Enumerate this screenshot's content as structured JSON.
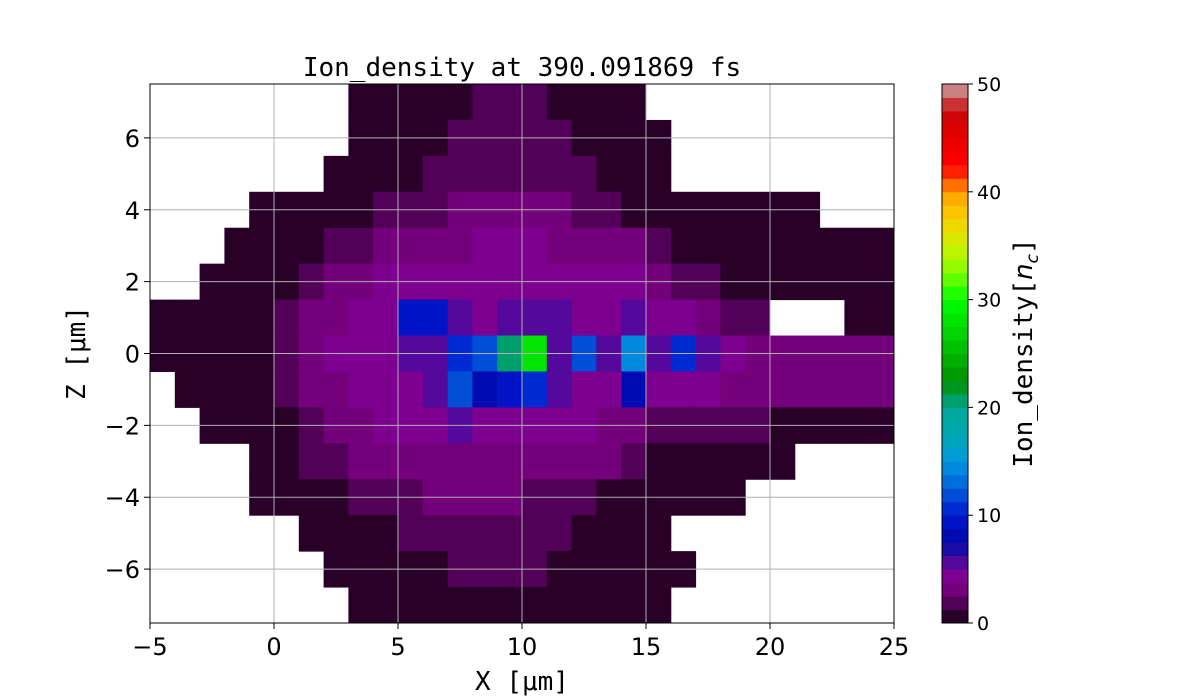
{
  "chart_data": {
    "type": "heatmap",
    "title": "Ion_density at 390.091869 fs",
    "xlabel": "X [μm]",
    "ylabel": "Z [μm]",
    "xlim": [
      -5,
      25
    ],
    "ylim": [
      -7.5,
      7.5
    ],
    "xticks": [
      -5,
      0,
      5,
      10,
      15,
      20,
      25
    ],
    "xtick_labels": [
      "−5",
      "0",
      "5",
      "10",
      "15",
      "20",
      "25"
    ],
    "yticks": [
      -6,
      -4,
      -2,
      0,
      2,
      4,
      6
    ],
    "ytick_labels": [
      "−6",
      "−4",
      "−2",
      "0",
      "2",
      "4",
      "6"
    ],
    "grid": true,
    "colorbar": {
      "label_prefix": "Ion_density[",
      "label_var": "n",
      "label_sub": "c",
      "label_suffix": "]",
      "range": [
        0,
        50
      ],
      "ticks": [
        0,
        10,
        20,
        30,
        40,
        50
      ],
      "tick_labels": [
        "0",
        "10",
        "20",
        "30",
        "40",
        "50"
      ],
      "levels": 40,
      "position": "right"
    },
    "colormap": [
      [
        0,
        "#14000f"
      ],
      [
        1.25,
        "#3c0040"
      ],
      [
        2.5,
        "#6a0070"
      ],
      [
        3.75,
        "#800088"
      ],
      [
        5,
        "#7a0098"
      ],
      [
        6.25,
        "#3010a0"
      ],
      [
        7.5,
        "#0008a8"
      ],
      [
        10,
        "#0018d0"
      ],
      [
        12.5,
        "#0060d8"
      ],
      [
        15,
        "#0098e0"
      ],
      [
        17.5,
        "#00a8b0"
      ],
      [
        20,
        "#00a898"
      ],
      [
        21.25,
        "#009840"
      ],
      [
        22.5,
        "#009000"
      ],
      [
        25,
        "#00b800"
      ],
      [
        30,
        "#00ff00"
      ],
      [
        32.5,
        "#80ff00"
      ],
      [
        35,
        "#d0f000"
      ],
      [
        37.5,
        "#f8d000"
      ],
      [
        40,
        "#ffa000"
      ],
      [
        41.25,
        "#ff4000"
      ],
      [
        42.5,
        "#ff0000"
      ],
      [
        46.25,
        "#d80000"
      ],
      [
        47.5,
        "#c80c0c"
      ],
      [
        48.75,
        "#cc5858"
      ],
      [
        50,
        "#ccaaaa"
      ]
    ],
    "x": [
      -4.5,
      -3.5,
      -2.5,
      -1.5,
      -0.5,
      0.5,
      1.5,
      2.5,
      3.5,
      4.5,
      5.5,
      6.5,
      7.5,
      8.5,
      9.5,
      10.5,
      11.5,
      12.5,
      13.5,
      14.5,
      15.5,
      16.5,
      17.5,
      18.5,
      19.5,
      20.5,
      21.5,
      22.5,
      23.5,
      24.5
    ],
    "z": [
      7,
      6,
      5,
      4,
      3,
      2,
      1,
      0,
      -1,
      -2,
      -3,
      -4,
      -5,
      -6,
      -7
    ],
    "values": [
      [
        0,
        0,
        0,
        0,
        0,
        0,
        0,
        0,
        1,
        1,
        1,
        1,
        1,
        1.5,
        1.5,
        1.5,
        1,
        1,
        1,
        1,
        0,
        0,
        0,
        0,
        0,
        0,
        0,
        0,
        0,
        0
      ],
      [
        0,
        0,
        0,
        0,
        0,
        0,
        0,
        0,
        1,
        1,
        1,
        1,
        1.5,
        1.5,
        1.5,
        1.5,
        1.5,
        1,
        1,
        1,
        1,
        0,
        0,
        0,
        0,
        0,
        0,
        0,
        0,
        0
      ],
      [
        0,
        0,
        0,
        0,
        0,
        0,
        0,
        0.5,
        1,
        1,
        1,
        1.5,
        1.5,
        2,
        2,
        2,
        1.5,
        1.5,
        1,
        1,
        1,
        0,
        0,
        0,
        0,
        0,
        0,
        0,
        0,
        0
      ],
      [
        0,
        0,
        0,
        0,
        0.5,
        1,
        1,
        1,
        1,
        1.5,
        2,
        2,
        3,
        3,
        3,
        3,
        3,
        2,
        1.5,
        1,
        1,
        1,
        1,
        0.5,
        0.5,
        0.5,
        0.5,
        0,
        0,
        0
      ],
      [
        0,
        0,
        0,
        0.5,
        1,
        1,
        1,
        1.5,
        2,
        3,
        3,
        3,
        3.5,
        4,
        4,
        4,
        3.5,
        3,
        3,
        3,
        1.5,
        1,
        1,
        1,
        1,
        1,
        1,
        1,
        1,
        1
      ],
      [
        0,
        0,
        0.5,
        0.5,
        1,
        1,
        2,
        3,
        3.5,
        4,
        4,
        4,
        4,
        4.5,
        4.5,
        4.5,
        4,
        4,
        4,
        4,
        3,
        2,
        1.5,
        1,
        1,
        1,
        1,
        1,
        1,
        1
      ],
      [
        0.5,
        0.5,
        0.5,
        1,
        1,
        1.5,
        3,
        3.5,
        4,
        4,
        9,
        9,
        6,
        4.5,
        5,
        6,
        5,
        4.5,
        4,
        5,
        4,
        4,
        3,
        2,
        1.5,
        0,
        0,
        0,
        0.5,
        1
      ],
      [
        0.5,
        0.5,
        1,
        1,
        1,
        2,
        3.5,
        4,
        4,
        4.5,
        6,
        6,
        10,
        12,
        20,
        28,
        5,
        12,
        5,
        14,
        5,
        10,
        6,
        4,
        3.5,
        3,
        3,
        3,
        2.5,
        2.5
      ],
      [
        0,
        0.5,
        0.5,
        1,
        1,
        1.5,
        3,
        3.5,
        4,
        4,
        4.5,
        5,
        12,
        8,
        9,
        10,
        5,
        4.5,
        4,
        8,
        4.5,
        4,
        4,
        3.5,
        3,
        3,
        3,
        3,
        3,
        3
      ],
      [
        0,
        0,
        0.5,
        1,
        1,
        1,
        2,
        3,
        3.5,
        4,
        4,
        4.5,
        5,
        4.5,
        4.5,
        4.5,
        4,
        4,
        3.5,
        3,
        2,
        1.5,
        1.5,
        1.5,
        1.5,
        1,
        1,
        1,
        0.5,
        0.5
      ],
      [
        0,
        0,
        0,
        0,
        1,
        1,
        1.5,
        2,
        3,
        3,
        3,
        3.5,
        3.5,
        3.5,
        3.5,
        3.5,
        3,
        3,
        2.5,
        2,
        1,
        1,
        1,
        1,
        1,
        0.5,
        0,
        0,
        0,
        0
      ],
      [
        0,
        0,
        0,
        0,
        0.5,
        1,
        1,
        1,
        1.5,
        2,
        2,
        2.5,
        2.5,
        2.5,
        2.5,
        2,
        2,
        1.5,
        1,
        1,
        1,
        0.5,
        0.5,
        0.5,
        0,
        0,
        0,
        0,
        0,
        0
      ],
      [
        0,
        0,
        0,
        0,
        0,
        0,
        0.5,
        1,
        1,
        1,
        1.5,
        1.5,
        2,
        2,
        2,
        2,
        1.5,
        1,
        1,
        1,
        1,
        0,
        0,
        0,
        0,
        0,
        0,
        0,
        0,
        0
      ],
      [
        0,
        0,
        0,
        0,
        0,
        0,
        0,
        0.5,
        1,
        1,
        1,
        1,
        1.5,
        1.5,
        1.5,
        1.5,
        1,
        1,
        1,
        1,
        1,
        0.5,
        0,
        0,
        0,
        0,
        0,
        0,
        0,
        0
      ],
      [
        0,
        0,
        0,
        0,
        0,
        0,
        0,
        0,
        0.5,
        1,
        1,
        1,
        1,
        1,
        1,
        1,
        1,
        1,
        1,
        1,
        1,
        0,
        0,
        0,
        0,
        0,
        0,
        0,
        0,
        0
      ]
    ]
  }
}
